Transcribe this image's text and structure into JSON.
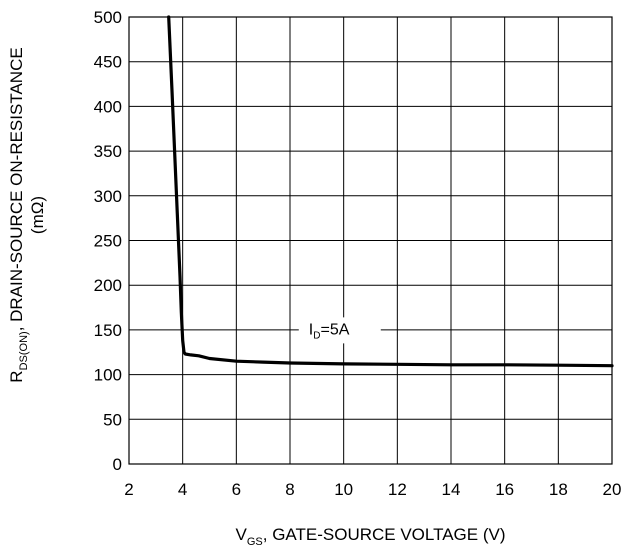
{
  "chart_data": {
    "type": "line",
    "xlabel": {
      "main": "V",
      "sub": "GS",
      "rest": ", GATE-SOURCE VOLTAGE (V)"
    },
    "ylabel": {
      "main": "R",
      "sub": "DS(ON)",
      "rest": ",  DRAIN-SOURCE ON-RESISTANCE",
      "unit": "(mΩ)"
    },
    "xlim": [
      2,
      20
    ],
    "ylim": [
      0,
      500
    ],
    "xticks": [
      2,
      4,
      6,
      8,
      10,
      12,
      14,
      16,
      18,
      20
    ],
    "yticks": [
      0,
      50,
      100,
      150,
      200,
      250,
      300,
      350,
      400,
      450,
      500
    ],
    "grid": true,
    "annotation": {
      "main": "I",
      "sub": "D",
      "rest": "=5A"
    },
    "series": [
      {
        "x": [
          3.48,
          3.6,
          3.7,
          3.8,
          3.9,
          3.95,
          4.0,
          4.05,
          4.1,
          4.3,
          4.6,
          5.0,
          6.0,
          7.0,
          8.0,
          10.0,
          12.0,
          14.0,
          16.0,
          18.0,
          20.0
        ],
        "y": [
          500,
          420,
          350,
          280,
          210,
          170,
          138,
          125,
          123,
          122,
          121,
          118,
          115,
          114,
          113,
          112,
          111.5,
          111,
          111,
          110.5,
          110
        ]
      }
    ]
  }
}
